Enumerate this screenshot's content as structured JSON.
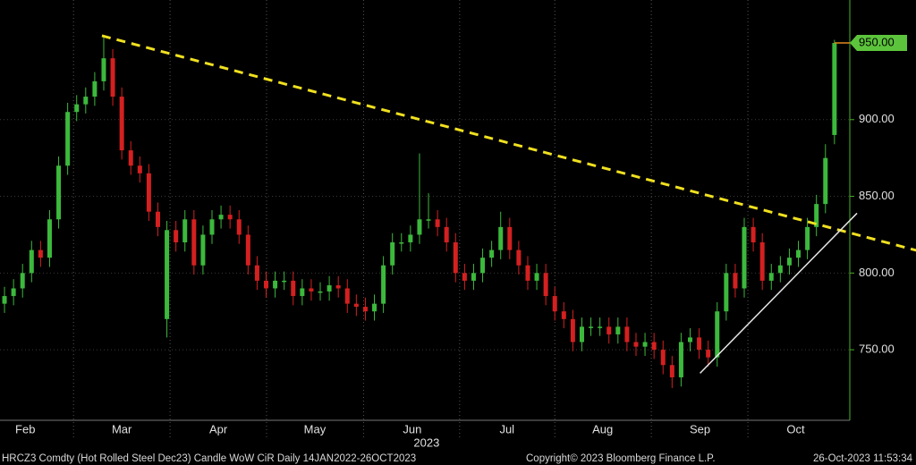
{
  "chart_data": {
    "type": "candlestick",
    "up_color": "#3cb93c",
    "down_color": "#d42020",
    "open": [
      780,
      785,
      790,
      800,
      815,
      810,
      835,
      870,
      905,
      910,
      915,
      925,
      940,
      915,
      880,
      870,
      865,
      840,
      770,
      828,
      820,
      835,
      805,
      825,
      835,
      838,
      835,
      825,
      805,
      795,
      790,
      795,
      795,
      785,
      790,
      788,
      788,
      792,
      790,
      780,
      778,
      775,
      780,
      805,
      820,
      820,
      825,
      835,
      835,
      830,
      820,
      800,
      795,
      800,
      810,
      815,
      830,
      815,
      805,
      795,
      800,
      785,
      775,
      770,
      755,
      765,
      765,
      765,
      760,
      765,
      755,
      752,
      755,
      750,
      740,
      732,
      755,
      758,
      750,
      745,
      775,
      800,
      790,
      830,
      820,
      795,
      800,
      805,
      810,
      815,
      830,
      845,
      890
    ],
    "high": [
      791,
      796,
      806,
      821,
      821,
      841,
      876,
      911,
      916,
      921,
      931,
      955,
      946,
      921,
      886,
      876,
      871,
      846,
      834,
      834,
      841,
      841,
      831,
      841,
      844,
      844,
      841,
      831,
      811,
      801,
      801,
      801,
      801,
      796,
      796,
      794,
      798,
      798,
      796,
      786,
      784,
      786,
      811,
      826,
      826,
      831,
      878,
      852,
      841,
      836,
      826,
      806,
      806,
      816,
      821,
      840,
      836,
      821,
      811,
      806,
      806,
      791,
      781,
      776,
      771,
      771,
      771,
      771,
      771,
      771,
      761,
      761,
      761,
      756,
      746,
      761,
      764,
      764,
      756,
      781,
      806,
      806,
      836,
      836,
      826,
      806,
      811,
      816,
      821,
      836,
      851,
      884,
      952
    ],
    "low": [
      774,
      779,
      784,
      794,
      804,
      804,
      829,
      864,
      899,
      904,
      909,
      919,
      909,
      874,
      864,
      859,
      834,
      824,
      758,
      814,
      814,
      799,
      799,
      819,
      829,
      829,
      819,
      799,
      789,
      784,
      784,
      789,
      779,
      779,
      782,
      782,
      782,
      784,
      774,
      772,
      769,
      769,
      774,
      799,
      814,
      814,
      819,
      829,
      824,
      814,
      794,
      789,
      789,
      794,
      804,
      809,
      809,
      799,
      789,
      789,
      779,
      769,
      764,
      749,
      749,
      759,
      759,
      754,
      754,
      749,
      746,
      746,
      744,
      734,
      725,
      726,
      749,
      744,
      739,
      739,
      769,
      784,
      784,
      814,
      789,
      789,
      794,
      799,
      804,
      809,
      824,
      839,
      884
    ],
    "close": [
      785,
      790,
      800,
      815,
      810,
      835,
      870,
      905,
      910,
      915,
      925,
      940,
      915,
      880,
      870,
      865,
      840,
      830,
      828,
      820,
      835,
      805,
      825,
      835,
      838,
      835,
      825,
      805,
      795,
      790,
      795,
      795,
      785,
      790,
      788,
      788,
      792,
      790,
      780,
      778,
      775,
      780,
      805,
      820,
      820,
      825,
      835,
      835,
      830,
      820,
      800,
      795,
      800,
      810,
      815,
      830,
      815,
      805,
      795,
      800,
      785,
      775,
      770,
      755,
      765,
      765,
      765,
      760,
      765,
      755,
      752,
      755,
      750,
      740,
      732,
      755,
      758,
      750,
      745,
      775,
      800,
      790,
      830,
      820,
      795,
      800,
      805,
      810,
      815,
      830,
      845,
      875,
      950
    ],
    "ylim": [
      704,
      978
    ],
    "yticks": [
      {
        "value": 750,
        "label": "750.00"
      },
      {
        "value": 800,
        "label": "800.00"
      },
      {
        "value": 850,
        "label": "850.00"
      },
      {
        "value": 900,
        "label": "900.00"
      }
    ],
    "xlim": [
      -0.5,
      93.7
    ],
    "xticks": [
      {
        "value": 2.3,
        "label": "Feb"
      },
      {
        "value": 13,
        "label": "Mar"
      },
      {
        "value": 23.7,
        "label": "Apr"
      },
      {
        "value": 34.4,
        "label": "May"
      },
      {
        "value": 45.2,
        "label": "Jun"
      },
      {
        "value": 55.7,
        "label": "Jul"
      },
      {
        "value": 66.3,
        "label": "Aug"
      },
      {
        "value": 77.1,
        "label": "Sep"
      },
      {
        "value": 87.7,
        "label": "Oct"
      }
    ],
    "x_year_label": "2023",
    "grid": true,
    "last_price": {
      "value": 950,
      "label": "950.00",
      "color": "#e08a1e"
    },
    "trendlines": [
      {
        "color": "#f0e020",
        "dashed": true,
        "x": [
          10.8,
          101.9
        ],
        "y": [
          954.7,
          813.5
        ]
      },
      {
        "color": "#e6e6e6",
        "dashed": false,
        "x": [
          77.1,
          94.5
        ],
        "y": [
          734.7,
          839
        ]
      }
    ],
    "footer": {
      "left": "HRCZ3 Comdty (Hot Rolled Steel  Dec23) Candle WoW CiR  Daily 14JAN2022-26OCT2023",
      "center": "Copyright© 2023 Bloomberg Finance L.P.",
      "right": "26-Oct-2023 11:53:34"
    }
  }
}
